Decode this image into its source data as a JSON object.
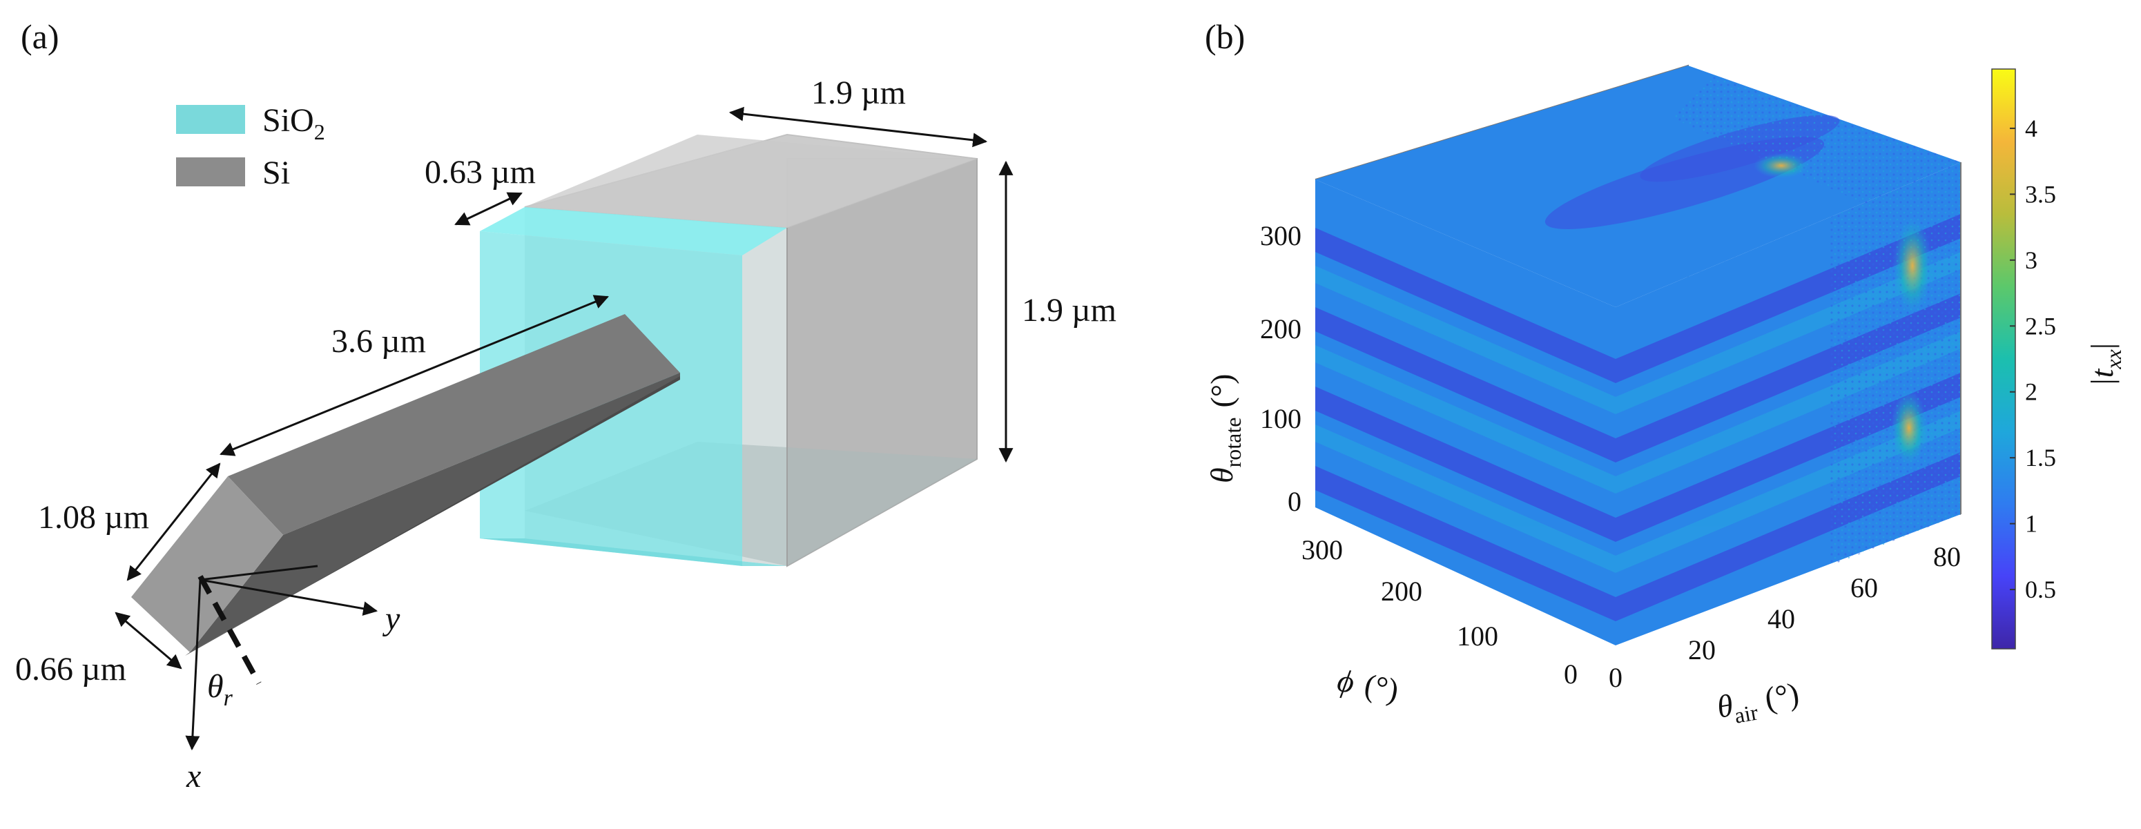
{
  "panel_a": {
    "label": "(a)",
    "legend": [
      {
        "text": "SiO",
        "sub": "2",
        "color": "#7ad9db"
      },
      {
        "text": "Si",
        "sub": "",
        "color": "#8c8c8c"
      }
    ],
    "dimensions": {
      "box_depth": "1.9 µm",
      "box_height": "1.9 µm",
      "oxide_thickness": "0.63 µm",
      "pillar_length": "3.6 µm",
      "pillar_width": "1.08 µm",
      "pillar_thickness": "0.66 µm"
    },
    "axes": {
      "x": "x",
      "y": "y",
      "theta": "θ",
      "theta_sub": "r"
    }
  },
  "panel_b": {
    "label": "(b)",
    "y_axis": {
      "label": "θ",
      "sub": "rotate",
      "unit": "(°)",
      "ticks": [
        "0",
        "100",
        "200",
        "300"
      ]
    },
    "phi_axis": {
      "label": "ϕ",
      "unit": "(°)",
      "ticks": [
        "0",
        "100",
        "200",
        "300"
      ]
    },
    "x_axis": {
      "label": "θ",
      "sub": "air",
      "unit": "(°)",
      "ticks": [
        "0",
        "20",
        "40",
        "60",
        "80"
      ]
    },
    "colorbar": {
      "label_prefix": "|t",
      "label_sub": "xx",
      "label_suffix": "|",
      "ticks": [
        "0.5",
        "1",
        "1.5",
        "2",
        "2.5",
        "3",
        "3.5",
        "4"
      ],
      "min": 0.05,
      "max": 4.45,
      "colormap": [
        "#3e26a8",
        "#4743f8",
        "#2f7cf0",
        "#1fa7db",
        "#1cbfae",
        "#5cc86b",
        "#b9bd3c",
        "#f4b63a",
        "#f9fb15"
      ]
    }
  }
}
